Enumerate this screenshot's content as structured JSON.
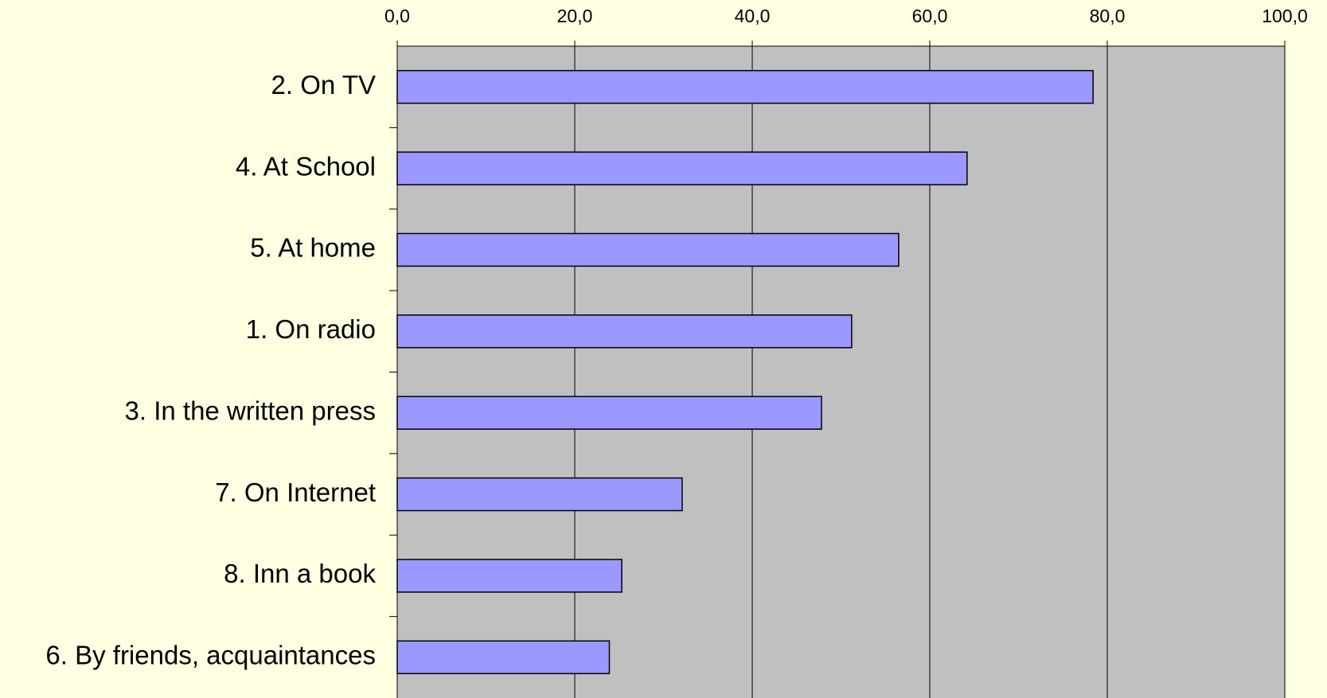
{
  "chart_data": {
    "type": "bar",
    "orientation": "horizontal",
    "categories": [
      "2. On TV",
      "4. At School",
      "5. At home",
      "1. On radio",
      "3. In the written press",
      "7. On Internet",
      "8. Inn a book",
      "6. By friends, acquaintances"
    ],
    "values": [
      78.4,
      64.2,
      56.5,
      51.2,
      47.8,
      32.1,
      25.3,
      23.9
    ],
    "color": "#9999ff",
    "xlim": [
      0,
      100
    ],
    "xticks": [
      {
        "value": 0,
        "label": "0,0"
      },
      {
        "value": 20,
        "label": "20,0"
      },
      {
        "value": 40,
        "label": "40,0"
      },
      {
        "value": 60,
        "label": "60,0"
      },
      {
        "value": 80,
        "label": "80,0"
      },
      {
        "value": 100,
        "label": "100,0"
      }
    ],
    "grid": true
  }
}
